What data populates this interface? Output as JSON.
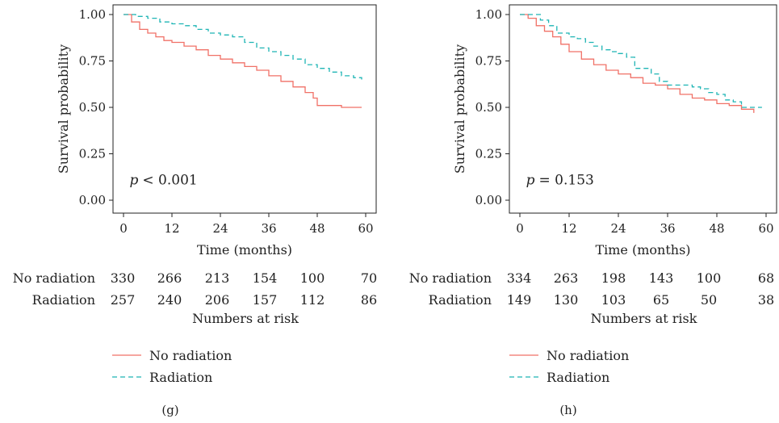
{
  "colors": {
    "no_radiation": "#f07167",
    "radiation": "#1fb5b5",
    "axis": "#222222"
  },
  "chart_data": [
    {
      "type": "line",
      "panel_label": "(g)",
      "ylabel": "Survival probability",
      "xlabel": "Time (months)",
      "xlim": [
        0,
        60
      ],
      "ylim": [
        0,
        1
      ],
      "x_ticks": [
        "0",
        "12",
        "24",
        "36",
        "48",
        "60"
      ],
      "y_ticks": [
        "0.00",
        "0.25",
        "0.50",
        "0.75",
        "1.00"
      ],
      "annotation_p": "p",
      "annotation_value": "< 0.001",
      "series": [
        {
          "name": "No radiation",
          "style": "solid",
          "x": [
            0,
            2,
            4,
            6,
            8,
            10,
            12,
            15,
            18,
            21,
            24,
            27,
            30,
            33,
            36,
            39,
            42,
            45,
            47,
            48,
            50,
            54,
            59
          ],
          "y": [
            1.0,
            0.96,
            0.92,
            0.9,
            0.88,
            0.86,
            0.85,
            0.83,
            0.81,
            0.78,
            0.76,
            0.74,
            0.72,
            0.7,
            0.67,
            0.64,
            0.61,
            0.58,
            0.55,
            0.51,
            0.51,
            0.5,
            0.5
          ]
        },
        {
          "name": "Radiation",
          "style": "dashed",
          "x": [
            0,
            3,
            6,
            9,
            12,
            15,
            18,
            21,
            24,
            27,
            30,
            33,
            36,
            39,
            42,
            45,
            48,
            51,
            54,
            57,
            59
          ],
          "y": [
            1.0,
            0.99,
            0.98,
            0.96,
            0.95,
            0.94,
            0.92,
            0.9,
            0.89,
            0.88,
            0.85,
            0.82,
            0.8,
            0.78,
            0.76,
            0.73,
            0.71,
            0.69,
            0.67,
            0.66,
            0.65
          ]
        }
      ],
      "risk_table": {
        "title": "Numbers at risk",
        "rows": [
          {
            "label": "No radiation",
            "values": [
              "330",
              "266",
              "213",
              "154",
              "100",
              "70"
            ]
          },
          {
            "label": "Radiation",
            "values": [
              "257",
              "240",
              "206",
              "157",
              "112",
              "86"
            ]
          }
        ]
      },
      "legend": [
        "No radiation",
        "Radiation"
      ]
    },
    {
      "type": "line",
      "panel_label": "(h)",
      "ylabel": "Survival probability",
      "xlabel": "Time (months)",
      "xlim": [
        0,
        60
      ],
      "ylim": [
        0,
        1
      ],
      "x_ticks": [
        "0",
        "12",
        "24",
        "36",
        "48",
        "60"
      ],
      "y_ticks": [
        "0.00",
        "0.25",
        "0.50",
        "0.75",
        "1.00"
      ],
      "annotation_p": "p",
      "annotation_value": "= 0.153",
      "series": [
        {
          "name": "No radiation",
          "style": "solid",
          "x": [
            0,
            2,
            4,
            6,
            8,
            10,
            12,
            15,
            18,
            21,
            24,
            27,
            30,
            33,
            36,
            39,
            42,
            45,
            48,
            51,
            54,
            57
          ],
          "y": [
            1.0,
            0.98,
            0.94,
            0.91,
            0.88,
            0.84,
            0.8,
            0.76,
            0.73,
            0.7,
            0.68,
            0.66,
            0.63,
            0.62,
            0.6,
            0.57,
            0.55,
            0.54,
            0.52,
            0.51,
            0.49,
            0.47
          ]
        },
        {
          "name": "Radiation",
          "style": "dashed",
          "x": [
            0,
            3,
            5,
            7,
            9,
            12,
            14,
            16,
            18,
            20,
            22,
            24,
            26,
            28,
            30,
            32,
            34,
            36,
            38,
            40,
            42,
            44,
            46,
            48,
            50,
            52,
            54,
            56,
            59
          ],
          "y": [
            1.0,
            1.0,
            0.97,
            0.94,
            0.9,
            0.88,
            0.87,
            0.85,
            0.83,
            0.81,
            0.8,
            0.79,
            0.77,
            0.71,
            0.71,
            0.68,
            0.64,
            0.62,
            0.62,
            0.62,
            0.61,
            0.6,
            0.58,
            0.57,
            0.54,
            0.53,
            0.5,
            0.5,
            0.5
          ]
        }
      ],
      "risk_table": {
        "title": "Numbers at risk",
        "rows": [
          {
            "label": "No radiation",
            "values": [
              "334",
              "263",
              "198",
              "143",
              "100",
              "68"
            ]
          },
          {
            "label": "Radiation",
            "values": [
              "149",
              "130",
              "103",
              "65",
              "50",
              "38"
            ]
          }
        ]
      },
      "legend": [
        "No radiation",
        "Radiation"
      ]
    }
  ]
}
